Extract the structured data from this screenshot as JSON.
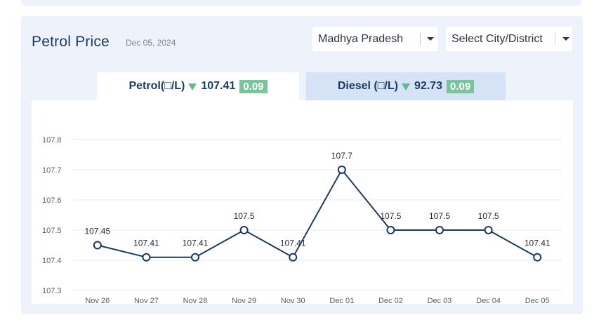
{
  "header": {
    "title": "Petrol Price",
    "date": "Dec 05, 2024"
  },
  "filters": {
    "state": "Madhya Pradesh",
    "city": "Select City/District"
  },
  "tabs": [
    {
      "label": "Petrol(□/L)",
      "price": "107.41",
      "change": "0.09",
      "direction": "down",
      "active": true
    },
    {
      "label": "Diesel (□/L)",
      "price": "92.73",
      "change": "0.09",
      "direction": "down",
      "active": false
    }
  ],
  "colors": {
    "accent": "#1c3a5e",
    "line": "#1c3a5e",
    "down_arrow": "#5dbb8e",
    "badge": "#7cc39a",
    "panel_bg": "#eef2fb",
    "inactive_tab": "#d6e2f5"
  },
  "chart_data": {
    "type": "line",
    "categories": [
      "Nov 26",
      "Nov 27",
      "Nov 28",
      "Nov 29",
      "Nov 30",
      "Dec 01",
      "Dec 02",
      "Dec 03",
      "Dec 04",
      "Dec 05"
    ],
    "series": [
      {
        "values": [
          107.45,
          107.41,
          107.41,
          107.5,
          107.41,
          107.7,
          107.5,
          107.5,
          107.5,
          107.41
        ],
        "labels": [
          "107.45",
          "107.41",
          "107.41",
          "107.5",
          "107.41",
          "107.7",
          "107.5",
          "107.5",
          "107.5",
          "107.41"
        ]
      }
    ],
    "yticks": [
      "107.3",
      "107.4",
      "107.5",
      "107.6",
      "107.7",
      "107.8"
    ],
    "ylim": [
      107.3,
      107.8
    ],
    "grid": true,
    "legend": "none"
  }
}
